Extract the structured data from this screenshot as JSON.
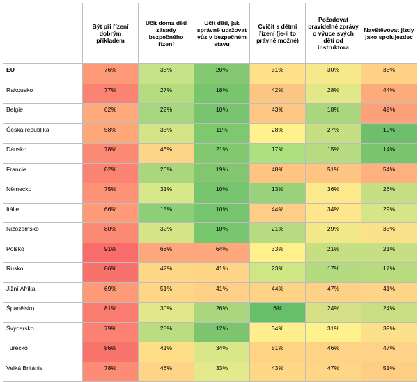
{
  "chart_data": {
    "type": "table",
    "columns": [
      "Být při řízení dobrým příkladem",
      "Učit doma děti zásady bezpečného řízení",
      "Učit děti, jak správně udržovat vůz v bezpečném stavu",
      "Cvičit s dětmi řízení (je-li to právně možné)",
      "Požadovat pravidelné zprávy o výuce svých dětí od instruktora",
      "Navštěvovat jízdy jako spolujezdec"
    ],
    "rows": [
      {
        "label": "EU",
        "values": [
          "76%",
          "33%",
          "20%",
          "31%",
          "30%",
          "33%"
        ]
      },
      {
        "label": "Rakousko",
        "values": [
          "77%",
          "27%",
          "18%",
          "42%",
          "28%",
          "44%"
        ]
      },
      {
        "label": "Belgie",
        "values": [
          "62%",
          "22%",
          "10%",
          "43%",
          "18%",
          "49%"
        ]
      },
      {
        "label": "Česká republika",
        "values": [
          "58%",
          "33%",
          "11%",
          "28%",
          "27%",
          "10%"
        ]
      },
      {
        "label": "Dánsko",
        "values": [
          "78%",
          "46%",
          "21%",
          "17%",
          "15%",
          "14%"
        ]
      },
      {
        "label": "Francie",
        "values": [
          "82%",
          "20%",
          "19%",
          "48%",
          "51%",
          "54%"
        ]
      },
      {
        "label": "Německo",
        "values": [
          "75%",
          "31%",
          "10%",
          "13%",
          "36%",
          "26%"
        ]
      },
      {
        "label": "Itálie",
        "values": [
          "66%",
          "15%",
          "10%",
          "44%",
          "34%",
          "29%"
        ]
      },
      {
        "label": "Nizozemsko",
        "values": [
          "80%",
          "32%",
          "10%",
          "21%",
          "29%",
          "33%"
        ]
      },
      {
        "label": "Polsko",
        "values": [
          "91%",
          "68%",
          "64%",
          "33%",
          "21%",
          "21%"
        ]
      },
      {
        "label": "Rusko",
        "values": [
          "86%",
          "42%",
          "41%",
          "23%",
          "17%",
          "17%"
        ]
      },
      {
        "label": "Jižní Afrika",
        "values": [
          "69%",
          "51%",
          "41%",
          "44%",
          "47%",
          "41%"
        ]
      },
      {
        "label": "Španělsko",
        "values": [
          "81%",
          "30%",
          "26%",
          "6%",
          "24%",
          "24%"
        ]
      },
      {
        "label": "Švýcarsko",
        "values": [
          "79%",
          "25%",
          "12%",
          "34%",
          "31%",
          "39%"
        ]
      },
      {
        "label": "Turecko",
        "values": [
          "86%",
          "41%",
          "34%",
          "51%",
          "46%",
          "47%"
        ]
      },
      {
        "label": "Velká Británie",
        "values": [
          "78%",
          "46%",
          "33%",
          "43%",
          "47%",
          "51%"
        ]
      }
    ],
    "colors": [
      [
        "#fe9a77",
        "#c6e387",
        "#84c871",
        "#ffe18a",
        "#f6e98b",
        "#fed186"
      ],
      [
        "#fb8373",
        "#b5dd80",
        "#79c56e",
        "#fbc682",
        "#e2e787",
        "#fcac7a"
      ],
      [
        "#feaa7c",
        "#a7d77e",
        "#79c46e",
        "#fec783",
        "#aad67e",
        "#fda17a"
      ],
      [
        "#fea87a",
        "#d5e487",
        "#7ec86f",
        "#fff18c",
        "#c6df83",
        "#6ebe6b"
      ],
      [
        "#fb8974",
        "#fcd686",
        "#82c86f",
        "#ade07f",
        "#b6db80",
        "#7ac46e"
      ],
      [
        "#fb8373",
        "#aad77e",
        "#82c670",
        "#ffc482",
        "#fec484",
        "#feb17f"
      ],
      [
        "#fe9276",
        "#d8e888",
        "#76c46d",
        "#98d37b",
        "#fbe98c",
        "#c6de84"
      ],
      [
        "#fe9a78",
        "#8ccf77",
        "#76c46d",
        "#fece86",
        "#ffe58c",
        "#d7e488"
      ],
      [
        "#fb8974",
        "#d6e488",
        "#78c66e",
        "#b7db80",
        "#f2e88a",
        "#fbe18a"
      ],
      [
        "#f86d6b",
        "#fea67c",
        "#fea67c",
        "#fff08c",
        "#c6df83",
        "#c6de84"
      ],
      [
        "#f8726c",
        "#fed786",
        "#fed586",
        "#cee684",
        "#b5db80",
        "#b8db80"
      ],
      [
        "#fe9a78",
        "#ffd685",
        "#ffd085",
        "#ffd385",
        "#fed286",
        "#fed486"
      ],
      [
        "#fa7b70",
        "#e2e88a",
        "#aad77e",
        "#68bf6a",
        "#d6e086",
        "#c9df84"
      ],
      [
        "#fb8273",
        "#bbdd81",
        "#7cc56e",
        "#ffef8c",
        "#fef28c",
        "#fde18a"
      ],
      [
        "#f8736c",
        "#fede87",
        "#d9e788",
        "#fed483",
        "#ffd385",
        "#fed387"
      ],
      [
        "#fc8c75",
        "#fed586",
        "#e4e98b",
        "#fed887",
        "#ffd685",
        "#ffce85"
      ]
    ]
  }
}
